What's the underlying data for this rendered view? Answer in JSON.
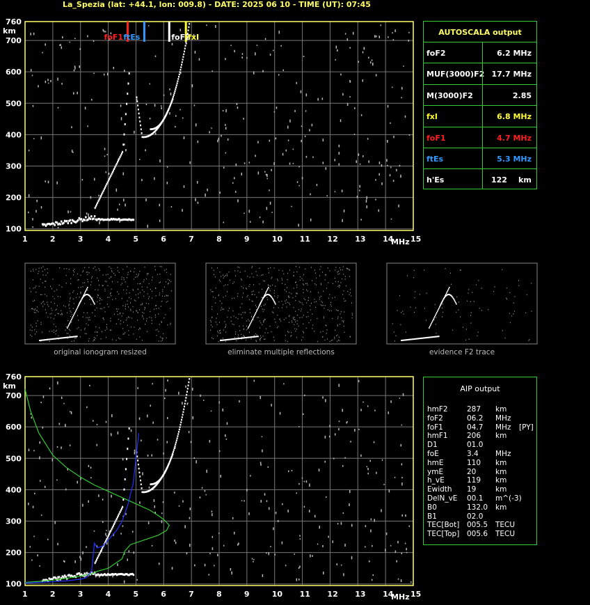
{
  "header": "La_Spezia (lat: +44.1, lon: 009.8) - DATE: 2025 06 10 - TIME (UT): 07:45",
  "colors": {
    "grid": "#888888",
    "axis": "#ffff66",
    "table_border": "#33cc33",
    "red": "#ff2020",
    "blue": "#3399ff",
    "yellow": "#ffff33",
    "green": "#33cc33"
  },
  "chart_data": [
    {
      "type": "scatter",
      "name": "top-ionogram",
      "title": "",
      "xlabel": "MHz",
      "ylabel": "km",
      "xlim": [
        1,
        15
      ],
      "ylim": [
        95,
        760
      ],
      "x_ticks": [
        1,
        2,
        3,
        4,
        5,
        6,
        7,
        8,
        9,
        10,
        11,
        12,
        13,
        14,
        15
      ],
      "y_ticks": [
        100,
        200,
        300,
        400,
        500,
        600,
        700,
        760
      ],
      "grid": true,
      "markers": [
        {
          "label": "foF1",
          "x": 4.7,
          "color": "#ff2020"
        },
        {
          "label": "ftEs",
          "x": 5.3,
          "color": "#3399ff"
        },
        {
          "label": "foF2",
          "x": 6.2,
          "color": "#ffffff"
        },
        {
          "label": "fxI",
          "x": 6.8,
          "color": "#ffff33"
        }
      ]
    },
    {
      "type": "scatter",
      "name": "bottom-ionogram",
      "title": "",
      "xlabel": "MHz",
      "ylabel": "km",
      "xlim": [
        1,
        15
      ],
      "ylim": [
        95,
        760
      ],
      "x_ticks": [
        1,
        2,
        3,
        4,
        5,
        6,
        7,
        8,
        9,
        10,
        11,
        12,
        13,
        14,
        15
      ],
      "y_ticks": [
        100,
        200,
        300,
        400,
        500,
        600,
        700,
        760
      ],
      "grid": true,
      "series": [
        {
          "color": "#33cc33",
          "x": [
            1.0,
            1.2,
            1.5,
            2.0,
            2.5,
            3.0,
            3.5,
            4.0,
            4.5,
            5.0,
            5.5,
            5.8,
            6.0,
            6.2,
            6.1,
            5.8,
            5.3,
            4.8,
            4.6,
            4.5,
            4.0,
            3.6,
            3.5,
            3.3,
            3.0,
            2.5,
            2.0,
            1.5,
            1.0
          ],
          "y": [
            720,
            650,
            580,
            510,
            470,
            440,
            415,
            395,
            375,
            355,
            335,
            318,
            305,
            287,
            270,
            255,
            240,
            225,
            205,
            180,
            150,
            140,
            135,
            130,
            125,
            118,
            112,
            108,
            105
          ]
        },
        {
          "color": "#2233ff",
          "x": [
            1.0,
            1.5,
            2.0,
            2.5,
            3.0,
            3.2,
            3.4,
            3.5,
            3.6,
            3.8,
            4.0,
            4.3,
            4.5,
            4.7,
            4.9,
            5.1
          ],
          "y": [
            103,
            105,
            107,
            110,
            115,
            120,
            140,
            230,
            215,
            220,
            240,
            270,
            300,
            350,
            420,
            580
          ]
        }
      ]
    }
  ],
  "thumbnails": [
    {
      "caption": "original ionogram resized"
    },
    {
      "caption": "eliminate multiple reflections"
    },
    {
      "caption": "evidence F2 trace"
    }
  ],
  "autoscala": {
    "title": "AUTOSCALA output",
    "rows": [
      {
        "label": "foF2",
        "value": "6.2 MHz",
        "color": "#ffffff"
      },
      {
        "label": "MUF(3000)F2",
        "value": "17.7 MHz",
        "color": "#ffffff"
      },
      {
        "label": "M(3000)F2",
        "value": "2.85",
        "color": "#ffffff"
      },
      {
        "label": "fxI",
        "value": "6.8 MHz",
        "color": "#ffff33"
      },
      {
        "label": "foF1",
        "value": "4.7 MHz",
        "color": "#ff2020"
      },
      {
        "label": "ftEs",
        "value": "5.3 MHz",
        "color": "#3399ff"
      },
      {
        "label": "h'Es",
        "value": "122",
        "unit": "km",
        "color": "#ffffff"
      }
    ]
  },
  "aip": {
    "title": "AIP output",
    "rows": [
      [
        "hmF2",
        "287",
        "km",
        ""
      ],
      [
        "foF2",
        "06.2",
        "MHz",
        ""
      ],
      [
        "foF1",
        "04.7",
        "MHz",
        "[PY]"
      ],
      [
        "hmF1",
        "206",
        "km",
        ""
      ],
      [
        "D1",
        "01.0",
        "",
        ""
      ],
      [
        "foE",
        "3.4",
        "MHz",
        ""
      ],
      [
        "hmE",
        "110",
        "km",
        ""
      ],
      [
        "ymE",
        "20",
        "km",
        ""
      ],
      [
        "h_vE",
        "119",
        "km",
        ""
      ],
      [
        "Ewidth",
        "19",
        "km",
        ""
      ],
      [
        "DelN_vE",
        "00.1",
        "m^(-3)",
        ""
      ],
      [
        "B0",
        "132.0",
        "km",
        ""
      ],
      [
        "B1",
        "02.0",
        "",
        ""
      ],
      [
        "TEC[Bot]",
        "005.5",
        "TECU",
        ""
      ],
      [
        "TEC[Top]",
        "005.6",
        "TECU",
        ""
      ]
    ]
  }
}
